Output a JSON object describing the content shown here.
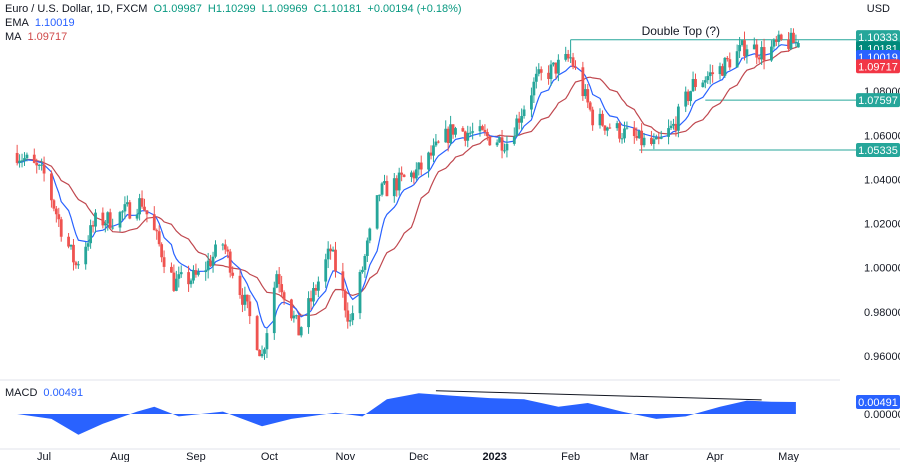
{
  "header": {
    "symbol": "Euro / U.S. Dollar, 1D, FXCM",
    "open": "O1.09987",
    "high": "H1.10299",
    "low": "L1.09969",
    "close": "C1.10181",
    "change": "+0.00194 (+0.18%)",
    "ema_label": "EMA",
    "ema_value": "1.10019",
    "ma_label": "MA",
    "ma_value": "1.09717",
    "macd_label": "MACD",
    "macd_value": "0.00491",
    "currency": "USD"
  },
  "colors": {
    "up": "#26a69a",
    "down": "#ef5350",
    "ema": "#2962ff",
    "ma": "#c0484f",
    "macd": "#2962ff",
    "level": "#26a69a",
    "tag_teal": "#26a69a",
    "tag_dark_teal": "#00897b",
    "tag_blue": "#2962ff",
    "tag_red": "#f23645"
  },
  "chart_data": [
    {
      "type": "candlestick",
      "title": "Euro / U.S. Dollar, 1D, FXCM",
      "x_labels": [
        "Jul",
        "Aug",
        "Sep",
        "Oct",
        "Nov",
        "Dec",
        "2023",
        "Feb",
        "Mar",
        "Apr",
        "May"
      ],
      "y_ticks": [
        "1.08000",
        "1.06000",
        "1.04000",
        "1.02000",
        "1.00000",
        "0.98000",
        "0.96000"
      ],
      "ylim": [
        0.95,
        1.11
      ],
      "series": [
        {
          "name": "EMA",
          "value": 1.10019
        },
        {
          "name": "MA",
          "value": 1.09717
        }
      ],
      "price_path": [
        [
          "2022-06-20",
          1.052
        ],
        [
          "2022-07-01",
          1.042
        ],
        [
          "2022-07-08",
          1.018
        ],
        [
          "2022-07-14",
          1.001
        ],
        [
          "2022-07-22",
          1.021
        ],
        [
          "2022-07-29",
          1.022
        ],
        [
          "2022-08-10",
          1.03
        ],
        [
          "2022-08-23",
          0.993
        ],
        [
          "2022-09-02",
          0.996
        ],
        [
          "2022-09-12",
          1.011
        ],
        [
          "2022-09-21",
          0.984
        ],
        [
          "2022-09-28",
          0.96
        ],
        [
          "2022-10-04",
          0.998
        ],
        [
          "2022-10-13",
          0.971
        ],
        [
          "2022-10-26",
          1.008
        ],
        [
          "2022-11-03",
          0.975
        ],
        [
          "2022-11-15",
          1.034
        ],
        [
          "2022-12-01",
          1.044
        ],
        [
          "2022-12-15",
          1.063
        ],
        [
          "2023-01-06",
          1.057
        ],
        [
          "2023-01-18",
          1.085
        ],
        [
          "2023-02-01",
          1.095
        ],
        [
          "2023-02-10",
          1.068
        ],
        [
          "2023-02-28",
          1.058
        ],
        [
          "2023-03-08",
          1.055
        ],
        [
          "2023-03-15",
          1.064
        ],
        [
          "2023-03-23",
          1.083
        ],
        [
          "2023-04-03",
          1.09
        ],
        [
          "2023-04-14",
          1.101
        ],
        [
          "2023-04-21",
          1.097
        ],
        [
          "2023-04-28",
          1.102
        ],
        [
          "2023-05-05",
          1.102
        ]
      ],
      "annotations": [
        {
          "text": "Double Top (?)"
        },
        {
          "type": "horizontal_level",
          "value": 1.10333,
          "label": "1.10333"
        },
        {
          "type": "horizontal_level",
          "value": 1.07597,
          "label": "1.07597"
        },
        {
          "type": "horizontal_level",
          "value": 1.05335,
          "label": "1.05335"
        }
      ],
      "price_tags": [
        {
          "label": "1.10333",
          "value": 1.10333,
          "color": "#26a69a"
        },
        {
          "label": "1.10181",
          "value": 1.10181,
          "color": "#00897b"
        },
        {
          "label": "1.10019",
          "value": 1.10019,
          "color": "#2962ff"
        },
        {
          "label": "1.09717",
          "value": 1.09717,
          "color": "#f23645"
        },
        {
          "label": "1.07597",
          "value": 1.07597,
          "color": "#26a69a"
        },
        {
          "label": "1.05335",
          "value": 1.05335,
          "color": "#26a69a"
        }
      ]
    },
    {
      "type": "area",
      "title": "MACD",
      "y_ticks": [
        "0.00000"
      ],
      "ylim": [
        -0.0135,
        0.0135
      ],
      "value": 0.00491,
      "macd_path": [
        [
          "2022-06-20",
          0.0
        ],
        [
          "2022-07-04",
          -0.002
        ],
        [
          "2022-07-15",
          -0.0085
        ],
        [
          "2022-07-25",
          -0.004
        ],
        [
          "2022-08-08",
          0.001
        ],
        [
          "2022-08-15",
          0.003
        ],
        [
          "2022-08-25",
          -0.001
        ],
        [
          "2022-09-12",
          0.001
        ],
        [
          "2022-09-28",
          -0.005
        ],
        [
          "2022-10-10",
          -0.002
        ],
        [
          "2022-10-28",
          0.0005
        ],
        [
          "2022-11-08",
          -0.001
        ],
        [
          "2022-11-18",
          0.006
        ],
        [
          "2022-12-01",
          0.0085
        ],
        [
          "2022-12-15",
          0.0075
        ],
        [
          "2022-12-30",
          0.0065
        ],
        [
          "2023-01-13",
          0.006
        ],
        [
          "2023-01-27",
          0.003
        ],
        [
          "2023-02-08",
          0.0045
        ],
        [
          "2023-02-22",
          0.001
        ],
        [
          "2023-03-08",
          -0.002
        ],
        [
          "2023-03-20",
          -0.001
        ],
        [
          "2023-04-03",
          0.003
        ],
        [
          "2023-04-14",
          0.0055
        ],
        [
          "2023-04-24",
          0.005
        ],
        [
          "2023-05-04",
          0.0049
        ]
      ],
      "trendline": [
        [
          "2022-12-08",
          0.0095
        ],
        [
          "2023-04-20",
          0.0058
        ]
      ]
    }
  ]
}
